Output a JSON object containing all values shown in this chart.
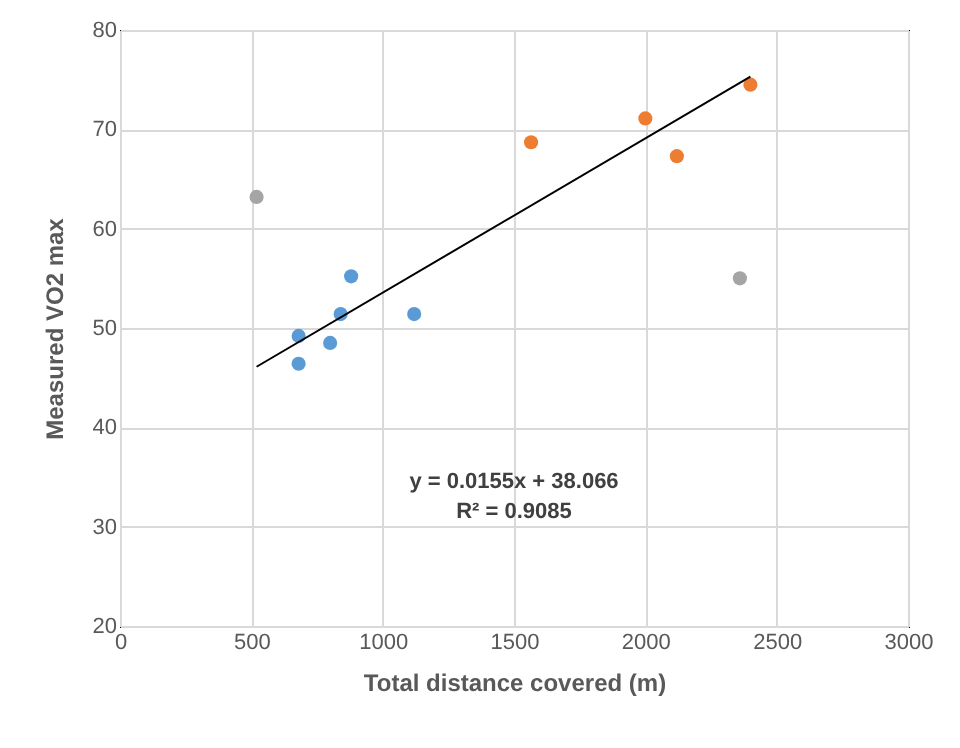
{
  "chart_data": {
    "type": "scatter",
    "xlabel": "Total distance covered (m)",
    "ylabel": "Measured VO2 max",
    "xlim": [
      0,
      3000
    ],
    "xticks": [
      0,
      500,
      1000,
      1500,
      2000,
      2500,
      3000
    ],
    "ylim": [
      20,
      80
    ],
    "yticks": [
      20,
      30,
      40,
      50,
      60,
      70,
      80
    ],
    "grid": true,
    "marker": "circle",
    "annotations": [
      "y = 0.0155x + 38.066",
      "R² = 0.9085"
    ],
    "series": [
      {
        "color": "#5b9bd5",
        "x": [
          680,
          680,
          800,
          840,
          880,
          1120
        ],
        "values": [
          49.2,
          46.4,
          48.5,
          51.4,
          55.2,
          51.4
        ]
      },
      {
        "color": "#ed7d31",
        "x": [
          1565,
          2000,
          2120,
          2400
        ],
        "values": [
          68.7,
          71.1,
          67.3,
          74.5
        ]
      },
      {
        "color": "#a5a5a5",
        "x": [
          520,
          2360
        ],
        "values": [
          63.2,
          55.0
        ]
      },
      {
        "type": "line",
        "marker": "none",
        "color": "#000000",
        "x": [
          520,
          2400
        ],
        "values": [
          46.1,
          75.3
        ]
      }
    ]
  }
}
